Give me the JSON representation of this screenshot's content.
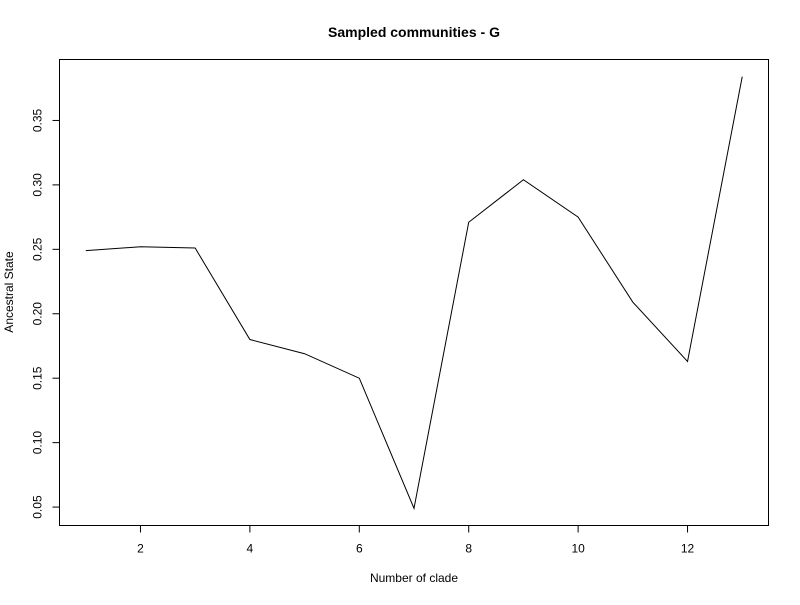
{
  "chart_data": {
    "type": "line",
    "title": "Sampled communities - G",
    "xlabel": "Number of clade",
    "ylabel": "Ancestral State",
    "x": [
      1,
      2,
      3,
      4,
      5,
      6,
      7,
      8,
      9,
      10,
      11,
      12,
      13
    ],
    "series": [
      {
        "values": [
          0.249,
          0.252,
          0.251,
          0.18,
          0.169,
          0.15,
          0.049,
          0.271,
          0.304,
          0.275,
          0.209,
          0.163,
          0.384
        ]
      }
    ],
    "xlim": [
      0.52,
      13.48
    ],
    "ylim": [
      0.0357,
      0.3973
    ],
    "xticks": [
      2,
      4,
      6,
      8,
      10,
      12
    ],
    "xtick_labels": [
      "2",
      "4",
      "6",
      "8",
      "10",
      "12"
    ],
    "yticks": [
      0.05,
      0.1,
      0.15,
      0.2,
      0.25,
      0.3,
      0.35
    ],
    "ytick_labels": [
      "0.05",
      "0.10",
      "0.15",
      "0.20",
      "0.25",
      "0.30",
      "0.35"
    ],
    "grid": false,
    "legend": "none",
    "colors": {
      "line": "#000000",
      "axis": "#000000",
      "background": "#ffffff"
    }
  }
}
